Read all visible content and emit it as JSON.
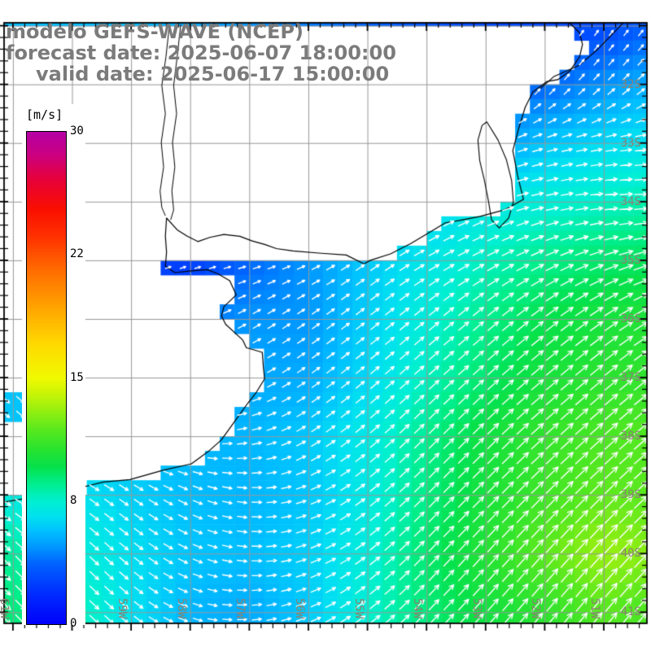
{
  "title": {
    "line1": "modelo GEFS-WAVE (NCEP)",
    "line2": "forecast date: 2025-06-07 18:00:00",
    "line3": "valid date: 2025-06-17 15:00:00"
  },
  "colorbar": {
    "unit": "[m/s]",
    "tick_labels": [
      "30",
      "22",
      "15",
      "8",
      "0"
    ],
    "tick_values": [
      30,
      22,
      15,
      8,
      0
    ],
    "min": 0,
    "max": 30,
    "stops": [
      [
        0,
        "#0000FA"
      ],
      [
        2,
        "#002CFF"
      ],
      [
        4,
        "#0064FF"
      ],
      [
        5,
        "#0096FF"
      ],
      [
        6,
        "#00BEFF"
      ],
      [
        7,
        "#00E1F0"
      ],
      [
        8,
        "#00EFD2"
      ],
      [
        9,
        "#00EE8E"
      ],
      [
        10,
        "#06E14A"
      ],
      [
        11,
        "#2BE32F"
      ],
      [
        12,
        "#55E81F"
      ],
      [
        13,
        "#8CEE12"
      ],
      [
        14,
        "#C3F408"
      ],
      [
        15,
        "#F0FA00"
      ],
      [
        17,
        "#FFD900"
      ],
      [
        19,
        "#FFA500"
      ],
      [
        21,
        "#FF7000"
      ],
      [
        23,
        "#FF3600"
      ],
      [
        25,
        "#FA0F00"
      ],
      [
        27,
        "#E6003C"
      ],
      [
        28.5,
        "#CC0080"
      ],
      [
        30,
        "#B400A5"
      ]
    ]
  },
  "axes": {
    "lat_labels": [
      {
        "value": -32,
        "label": "32S"
      },
      {
        "value": -33,
        "label": "33S"
      },
      {
        "value": -34,
        "label": "34S"
      },
      {
        "value": -35,
        "label": "35S"
      },
      {
        "value": -36,
        "label": "36S"
      },
      {
        "value": -37,
        "label": "37S"
      },
      {
        "value": -38,
        "label": "38S"
      },
      {
        "value": -39,
        "label": "39S"
      },
      {
        "value": -40,
        "label": "40S"
      },
      {
        "value": -41,
        "label": "41S"
      }
    ],
    "lon_labels": [
      {
        "value": -61,
        "label": "61W"
      },
      {
        "value": -60,
        "label": "60W"
      },
      {
        "value": -59,
        "label": "59W"
      },
      {
        "value": -58,
        "label": "58W"
      },
      {
        "value": -57,
        "label": "57W"
      },
      {
        "value": -56,
        "label": "56W"
      },
      {
        "value": -55,
        "label": "55W"
      },
      {
        "value": -54,
        "label": "54W"
      },
      {
        "value": -53,
        "label": "53W"
      },
      {
        "value": -52,
        "label": "52W"
      },
      {
        "value": -51,
        "label": "51W"
      }
    ]
  },
  "colors": {
    "grid": "#989898",
    "coast": "#000000",
    "axis_label": "#8b8272",
    "title": "#7b7b7b",
    "arrow": "#ffffff",
    "frame": "#000000"
  },
  "chart_data": {
    "type": "heatmap",
    "field": "wind speed and direction",
    "units": "m/s",
    "cell_size_deg": 0.25,
    "lons": [
      -61,
      -60,
      -59,
      -58,
      -57,
      -56,
      -55,
      -54,
      -53,
      -52,
      -51,
      -50
    ],
    "lats": [
      -31,
      -32,
      -33,
      -34,
      -35,
      -36,
      -37,
      -38,
      -39,
      -40,
      -41
    ],
    "speed": [
      [
        6,
        6,
        6,
        5.5,
        5,
        4.5,
        4,
        3.5,
        3,
        3,
        3,
        4
      ],
      [
        6,
        6,
        5.5,
        5,
        4.5,
        4,
        3.5,
        3.5,
        3.5,
        4,
        5,
        5.8
      ],
      [
        5,
        5,
        5,
        4.5,
        4,
        3.5,
        3.5,
        4,
        5,
        6.2,
        6.8,
        7.2
      ],
      [
        4,
        3.5,
        3,
        2.5,
        3.5,
        5,
        5.8,
        6.5,
        7.3,
        7.8,
        8.2,
        8.6
      ],
      [
        4,
        3,
        2.5,
        2.5,
        4,
        5,
        6.3,
        7.3,
        8.3,
        9,
        9.5,
        9.8
      ],
      [
        5,
        4.5,
        4.5,
        4.5,
        5,
        5,
        6.5,
        7.8,
        9,
        10,
        10.5,
        10.8
      ],
      [
        6,
        5.5,
        5,
        5,
        5.5,
        5.5,
        6.8,
        8.3,
        9.5,
        10.5,
        11,
        11.2
      ],
      [
        6.5,
        6,
        6,
        5.8,
        5.8,
        6.3,
        7.5,
        9,
        10.3,
        11.2,
        11.8,
        12
      ],
      [
        7.5,
        7.2,
        6.5,
        6,
        5.8,
        6.2,
        7.5,
        9.2,
        10.5,
        11.5,
        12.2,
        12
      ],
      [
        8.8,
        8,
        7,
        6.2,
        6,
        6.5,
        7.8,
        9.5,
        10.8,
        12.2,
        13.3,
        12.8
      ],
      [
        9.3,
        8.7,
        7,
        5.8,
        5.5,
        6.3,
        8,
        9.3,
        10.3,
        11,
        12,
        11.6
      ]
    ],
    "direction_deg": [
      [
        50,
        50,
        50,
        50,
        50,
        50,
        50,
        50,
        55,
        55,
        55,
        50
      ],
      [
        45,
        45,
        45,
        45,
        45,
        45,
        45,
        45,
        48,
        50,
        45,
        40
      ],
      [
        40,
        40,
        40,
        40,
        40,
        40,
        35,
        30,
        25,
        15,
        10,
        5
      ],
      [
        35,
        35,
        30,
        25,
        10,
        15,
        20,
        25,
        20,
        12,
        5,
        0
      ],
      [
        30,
        30,
        25,
        15,
        15,
        25,
        35,
        30,
        28,
        25,
        20,
        15
      ],
      [
        25,
        25,
        20,
        20,
        30,
        35,
        38,
        40,
        40,
        38,
        35,
        30
      ],
      [
        15,
        10,
        10,
        15,
        25,
        35,
        40,
        42,
        42,
        40,
        40,
        38
      ],
      [
        0,
        -5,
        -10,
        -5,
        10,
        32,
        40,
        45,
        45,
        42,
        42,
        40
      ],
      [
        -30,
        -35,
        -35,
        -25,
        -5,
        20,
        38,
        45,
        45,
        45,
        45,
        42
      ],
      [
        -45,
        -45,
        -40,
        -25,
        -5,
        20,
        38,
        46,
        48,
        48,
        48,
        45
      ],
      [
        -45,
        -45,
        -40,
        -20,
        5,
        22,
        38,
        46,
        48,
        50,
        50,
        48
      ]
    ]
  },
  "geography": {
    "frame_extent": {
      "lon_min": -61.15,
      "lon_max": -50.27,
      "lat_north": -30.95,
      "lat_south": -41.19
    },
    "grid_step_deg": 1,
    "minor_tick_deg": 0.2,
    "land_polygon": [
      [
        -61.3,
        -30.9
      ],
      [
        -51.58,
        -30.95
      ],
      [
        -51.41,
        -31.12
      ],
      [
        -51.36,
        -31.32
      ],
      [
        -51.41,
        -31.53
      ],
      [
        -51.58,
        -31.78
      ],
      [
        -51.78,
        -31.92
      ],
      [
        -51.96,
        -31.95
      ],
      [
        -52.2,
        -32.13
      ],
      [
        -52.33,
        -32.39
      ],
      [
        -52.44,
        -32.75
      ],
      [
        -52.54,
        -33.13
      ],
      [
        -52.46,
        -33.55
      ],
      [
        -52.36,
        -33.96
      ],
      [
        -52.68,
        -34.14
      ],
      [
        -53.09,
        -34.25
      ],
      [
        -53.44,
        -34.32
      ],
      [
        -53.68,
        -34.36
      ],
      [
        -53.88,
        -34.48
      ],
      [
        -54.26,
        -34.71
      ],
      [
        -54.61,
        -34.89
      ],
      [
        -54.95,
        -35.0
      ],
      [
        -55.06,
        -35.06
      ],
      [
        -55.36,
        -34.91
      ],
      [
        -55.78,
        -34.88
      ],
      [
        -56.26,
        -34.84
      ],
      [
        -56.54,
        -34.8
      ],
      [
        -56.74,
        -34.73
      ],
      [
        -56.95,
        -34.67
      ],
      [
        -57.16,
        -34.59
      ],
      [
        -57.43,
        -34.56
      ],
      [
        -57.67,
        -34.61
      ],
      [
        -57.87,
        -34.68
      ],
      [
        -58.05,
        -34.59
      ],
      [
        -58.22,
        -34.48
      ],
      [
        -58.4,
        -34.28
      ],
      [
        -58.42,
        -34.59
      ],
      [
        -58.4,
        -34.86
      ],
      [
        -58.42,
        -35.1
      ],
      [
        -58.26,
        -35.21
      ],
      [
        -57.98,
        -35.18
      ],
      [
        -57.71,
        -35.16
      ],
      [
        -57.53,
        -35.23
      ],
      [
        -57.33,
        -35.35
      ],
      [
        -57.22,
        -35.59
      ],
      [
        -57.43,
        -35.79
      ],
      [
        -57.47,
        -35.95
      ],
      [
        -57.4,
        -36.09
      ],
      [
        -57.11,
        -36.36
      ],
      [
        -57.05,
        -36.49
      ],
      [
        -56.78,
        -36.57
      ],
      [
        -56.76,
        -36.84
      ],
      [
        -56.74,
        -37.02
      ],
      [
        -56.88,
        -37.25
      ],
      [
        -57.02,
        -37.43
      ],
      [
        -57.22,
        -37.71
      ],
      [
        -57.47,
        -38.06
      ],
      [
        -57.67,
        -38.24
      ],
      [
        -57.98,
        -38.47
      ],
      [
        -58.46,
        -38.58
      ],
      [
        -59.02,
        -38.74
      ],
      [
        -59.47,
        -38.78
      ],
      [
        -59.91,
        -38.89
      ],
      [
        -60.19,
        -38.97
      ],
      [
        -60.67,
        -39.04
      ],
      [
        -61.08,
        -39.11
      ],
      [
        -61.3,
        -39.14
      ]
    ],
    "river_lines": [
      [
        [
          -58.16,
          -30.98
        ],
        [
          -58.22,
          -31.53
        ],
        [
          -58.28,
          -32.02
        ],
        [
          -58.23,
          -32.5
        ],
        [
          -58.3,
          -32.99
        ],
        [
          -58.26,
          -33.41
        ],
        [
          -58.31,
          -33.82
        ],
        [
          -58.28,
          -34.14
        ],
        [
          -58.33,
          -34.31
        ]
      ],
      [
        [
          -58.35,
          -30.98
        ],
        [
          -58.41,
          -31.53
        ],
        [
          -58.48,
          -32.02
        ],
        [
          -58.42,
          -32.5
        ],
        [
          -58.49,
          -32.99
        ],
        [
          -58.45,
          -33.41
        ],
        [
          -58.51,
          -33.82
        ],
        [
          -58.48,
          -34.1
        ],
        [
          -58.42,
          -34.24
        ]
      ]
    ],
    "lagoon_lines": [
      [
        [
          -50.67,
          -30.95
        ],
        [
          -51.09,
          -31.39
        ],
        [
          -51.41,
          -31.67
        ],
        [
          -51.85,
          -31.87
        ],
        [
          -52.17,
          -32.16
        ]
      ],
      [
        [
          -52.98,
          -32.64
        ],
        [
          -52.79,
          -32.95
        ],
        [
          -52.65,
          -33.28
        ],
        [
          -52.56,
          -33.64
        ],
        [
          -52.53,
          -34.0
        ],
        [
          -52.61,
          -34.28
        ],
        [
          -52.77,
          -34.45
        ],
        [
          -52.9,
          -34.31
        ],
        [
          -52.95,
          -34.0
        ],
        [
          -53.02,
          -33.64
        ],
        [
          -53.1,
          -33.3
        ],
        [
          -53.13,
          -32.95
        ],
        [
          -53.06,
          -32.7
        ],
        [
          -52.98,
          -32.64
        ]
      ]
    ],
    "inland_water_cells": [
      {
        "lon": -61.125,
        "lat": -37.375,
        "speed": 6.2,
        "dir": -40
      },
      {
        "lon": -60.875,
        "lat": -37.375,
        "speed": 6.2,
        "dir": -40
      },
      {
        "lon": -61.125,
        "lat": -37.625,
        "speed": 6.2,
        "dir": -40
      },
      {
        "lon": -60.875,
        "lat": -37.625,
        "speed": 6.2,
        "dir": -40
      }
    ]
  }
}
